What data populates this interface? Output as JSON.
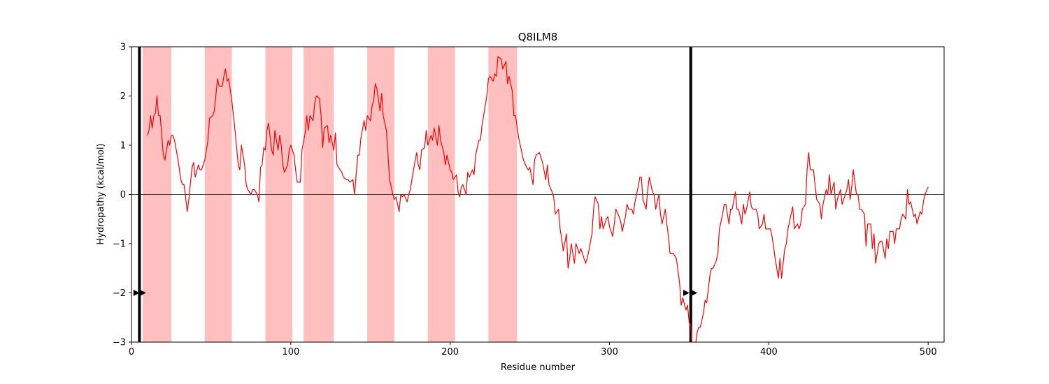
{
  "chart_data": {
    "type": "line",
    "title": "Q8ILM8",
    "x_label": "Residue number",
    "y_label": "Hydropathy (kcal/mol)",
    "xlim": [
      0,
      510
    ],
    "ylim": [
      -3,
      3
    ],
    "xticks": [
      0,
      100,
      200,
      300,
      400,
      500
    ],
    "yticks": [
      {
        "value": -3,
        "label": "−3"
      },
      {
        "value": -2,
        "label": "−2"
      },
      {
        "value": -1,
        "label": "−1"
      },
      0,
      1,
      2,
      3
    ],
    "hline": 0,
    "regions": {
      "color": "#ffbfbf",
      "spans": [
        [
          7,
          25
        ],
        [
          46,
          63
        ],
        [
          84,
          101
        ],
        [
          108,
          127
        ],
        [
          148,
          165
        ],
        [
          186,
          203
        ],
        [
          224,
          242
        ]
      ]
    },
    "vlines": {
      "color": "#000000",
      "x": [
        5,
        351
      ]
    },
    "markers": {
      "color": "#000000",
      "y": -2,
      "x": [
        3,
        7,
        348,
        353
      ]
    },
    "series": [
      {
        "color": "#ff0000",
        "x": [
          10,
          11,
          12,
          13,
          14,
          15,
          16,
          17,
          18,
          20,
          21,
          23,
          24,
          25,
          26,
          27,
          29,
          31,
          32,
          33,
          35,
          36,
          38,
          39,
          40,
          42,
          43,
          44,
          46,
          48,
          49,
          51,
          52,
          54,
          55,
          57,
          58,
          59,
          60,
          61,
          63,
          64,
          65,
          67,
          68,
          69,
          71,
          72,
          73,
          75,
          76,
          77,
          79,
          80,
          81,
          82,
          83,
          84,
          85,
          86,
          88,
          89,
          90,
          92,
          93,
          94,
          95,
          96,
          98,
          99,
          100,
          102,
          103,
          104,
          106,
          107,
          109,
          110,
          111,
          112,
          114,
          115,
          116,
          118,
          119,
          120,
          121,
          123,
          124,
          125,
          127,
          128,
          129,
          131,
          132,
          133,
          135,
          136,
          137,
          139,
          140,
          142,
          143,
          144,
          146,
          147,
          148,
          150,
          151,
          152,
          153,
          154,
          156,
          157,
          158,
          160,
          161,
          162,
          164,
          165,
          166,
          168,
          169,
          170,
          171,
          173,
          174,
          175,
          177,
          179,
          180,
          181,
          182,
          184,
          185,
          186,
          188,
          189,
          190,
          192,
          193,
          194,
          196,
          197,
          198,
          200,
          201,
          202,
          204,
          205,
          206,
          207,
          208,
          210,
          211,
          212,
          214,
          215,
          216,
          218,
          219,
          220,
          221,
          223,
          224,
          225,
          227,
          228,
          229,
          230,
          232,
          233,
          235,
          236,
          237,
          239,
          240,
          241,
          243,
          244,
          245,
          246,
          248,
          249,
          250,
          252,
          253,
          254,
          256,
          257,
          258,
          260,
          261,
          262,
          264,
          265,
          266,
          268,
          269,
          270,
          271,
          273,
          274,
          275,
          276,
          278,
          279,
          281,
          282,
          283,
          285,
          286,
          287,
          289,
          290,
          291,
          293,
          294,
          295,
          296,
          298,
          299,
          300,
          302,
          303,
          304,
          306,
          307,
          308,
          310,
          311,
          312,
          314,
          315,
          316,
          318,
          319,
          320,
          321,
          323,
          324,
          325,
          327,
          328,
          329,
          331,
          332,
          333,
          335,
          336,
          337,
          338,
          340,
          341,
          342,
          344,
          345,
          346,
          348,
          349,
          350,
          351,
          352,
          353,
          355,
          356,
          357,
          359,
          360,
          361,
          363,
          364,
          365,
          367,
          368,
          369,
          371,
          372,
          373,
          375,
          376,
          377,
          379,
          380,
          381,
          383,
          384,
          385,
          386,
          388,
          389,
          390,
          392,
          393,
          394,
          396,
          397,
          398,
          400,
          401,
          402,
          404,
          405,
          406,
          407,
          408,
          410,
          411,
          412,
          414,
          415,
          416,
          418,
          419,
          420,
          421,
          423,
          424,
          425,
          426,
          428,
          429,
          430,
          432,
          433,
          434,
          436,
          437,
          438,
          439,
          441,
          442,
          443,
          445,
          446,
          447,
          449,
          450,
          451,
          452,
          453,
          455,
          456,
          457,
          458,
          460,
          461,
          462,
          464,
          465,
          466,
          467,
          469,
          470,
          471,
          473,
          474,
          475,
          476,
          478,
          479,
          480,
          482,
          483,
          484,
          486,
          487,
          488,
          489,
          491,
          492,
          493,
          495,
          496,
          497,
          498,
          500
        ],
        "values": [
          1.2,
          1.3,
          1.6,
          1.35,
          1.6,
          1.65,
          2.0,
          1.6,
          1.6,
          0.8,
          0.7,
          1.1,
          1.0,
          1.2,
          1.2,
          1.1,
          0.75,
          0.3,
          0.2,
          0.2,
          -0.35,
          -0.1,
          0.55,
          0.65,
          0.35,
          0.6,
          0.5,
          0.5,
          0.7,
          1.1,
          1.55,
          1.6,
          1.7,
          2.35,
          2.2,
          2.2,
          2.4,
          2.55,
          2.3,
          2.35,
          1.9,
          1.6,
          1.3,
          0.6,
          0.5,
          1.0,
          0.6,
          0.2,
          0.1,
          0.0,
          0.1,
          0.1,
          0.0,
          -0.15,
          0.55,
          0.6,
          0.95,
          0.9,
          1.3,
          1.45,
          0.9,
          0.8,
          1.3,
          0.9,
          1.2,
          1.0,
          0.6,
          0.45,
          0.6,
          0.9,
          1.0,
          0.8,
          0.5,
          0.25,
          0.25,
          0.9,
          1.25,
          1.6,
          1.3,
          1.6,
          1.5,
          1.85,
          2.0,
          1.95,
          1.6,
          0.95,
          1.35,
          1.4,
          1.05,
          1.2,
          0.9,
          1.25,
          0.6,
          0.5,
          0.45,
          0.35,
          0.3,
          0.3,
          0.25,
          0.3,
          0.0,
          0.8,
          0.8,
          1.15,
          1.5,
          1.3,
          1.6,
          1.5,
          1.8,
          1.9,
          2.25,
          2.15,
          1.7,
          2.05,
          1.6,
          1.3,
          0.8,
          0.3,
          0.0,
          -0.1,
          -0.05,
          -0.35,
          0.0,
          -0.05,
          0.0,
          -0.15,
          0.0,
          0.1,
          0.5,
          0.85,
          0.6,
          0.5,
          0.9,
          0.95,
          1.3,
          1.0,
          1.2,
          1.1,
          1.35,
          1.0,
          1.4,
          1.1,
          0.85,
          0.6,
          0.8,
          0.5,
          0.45,
          0.3,
          0.4,
          0.05,
          -0.05,
          0.15,
          0.2,
          0.0,
          0.45,
          0.35,
          0.5,
          0.4,
          0.8,
          1.1,
          1.1,
          1.4,
          1.6,
          2.0,
          2.35,
          2.4,
          2.3,
          2.45,
          2.4,
          2.8,
          2.75,
          2.55,
          2.7,
          2.25,
          2.4,
          2.1,
          1.6,
          1.6,
          1.15,
          1.0,
          0.85,
          0.7,
          0.55,
          0.5,
          0.55,
          0.2,
          0.7,
          0.8,
          0.85,
          0.75,
          0.65,
          0.3,
          0.6,
          0.2,
          0.05,
          -0.05,
          -0.4,
          -0.3,
          -0.7,
          -0.9,
          -1.15,
          -0.8,
          -1.5,
          -1.3,
          -1.0,
          -1.4,
          -1.0,
          -1.2,
          -1.1,
          -1.2,
          -1.4,
          -1.3,
          -1.15,
          -0.8,
          -0.3,
          -0.05,
          -0.2,
          -0.7,
          -0.45,
          -0.7,
          -0.5,
          -0.45,
          -0.65,
          -0.85,
          -0.6,
          -0.3,
          -0.45,
          -0.55,
          -0.75,
          -0.45,
          -0.2,
          -0.3,
          -0.3,
          -0.4,
          -0.15,
          0.15,
          0.35,
          0.35,
          -0.1,
          -0.3,
          0.1,
          0.35,
          0.05,
          0.0,
          -0.3,
          0.0,
          -0.4,
          -0.6,
          -0.3,
          -0.6,
          -0.85,
          -1.2,
          -1.2,
          -1.25,
          -1.3,
          -1.8,
          -2.25,
          -2.1,
          -2.35,
          -2.25,
          -2.6,
          -2.65,
          -3.2,
          -3.3,
          -2.8,
          -2.7,
          -2.7,
          -2.4,
          -2.15,
          -2.2,
          -1.65,
          -1.5,
          -1.5,
          -1.35,
          -1.2,
          -0.7,
          -0.4,
          -0.2,
          -0.2,
          -0.6,
          -0.3,
          -0.3,
          0.05,
          -0.3,
          -0.3,
          -0.6,
          -0.2,
          -0.4,
          -0.3,
          0.05,
          -0.25,
          -0.3,
          -0.3,
          -0.4,
          -0.7,
          -0.6,
          -0.4,
          -0.7,
          -0.7,
          -0.7,
          -0.85,
          -1.3,
          -1.5,
          -1.7,
          -1.3,
          -1.7,
          -1.1,
          -1.0,
          -0.7,
          -0.4,
          -0.25,
          -0.7,
          -0.6,
          -0.7,
          -0.6,
          -0.3,
          -0.2,
          0.5,
          0.85,
          0.5,
          0.5,
          0.2,
          -0.1,
          -0.2,
          -0.5,
          -0.2,
          0.1,
          0.0,
          0.4,
          0.0,
          0.25,
          -0.3,
          -0.1,
          0.1,
          -0.2,
          -0.1,
          0.1,
          0.3,
          -0.1,
          0.15,
          0.5,
          0.0,
          0.0,
          -0.3,
          -0.3,
          -0.4,
          -1.05,
          -0.6,
          -0.6,
          -1.1,
          -0.8,
          -1.4,
          -1.0,
          -0.95,
          -0.95,
          -1.3,
          -0.9,
          -1.1,
          -0.75,
          -0.75,
          -1.0,
          -0.7,
          -0.7,
          -0.5,
          -0.4,
          -0.5,
          0.1,
          -0.2,
          -0.15,
          -0.45,
          -0.4,
          -0.6,
          -0.35,
          -0.4,
          -0.15,
          0.0,
          0.15
        ]
      }
    ]
  }
}
